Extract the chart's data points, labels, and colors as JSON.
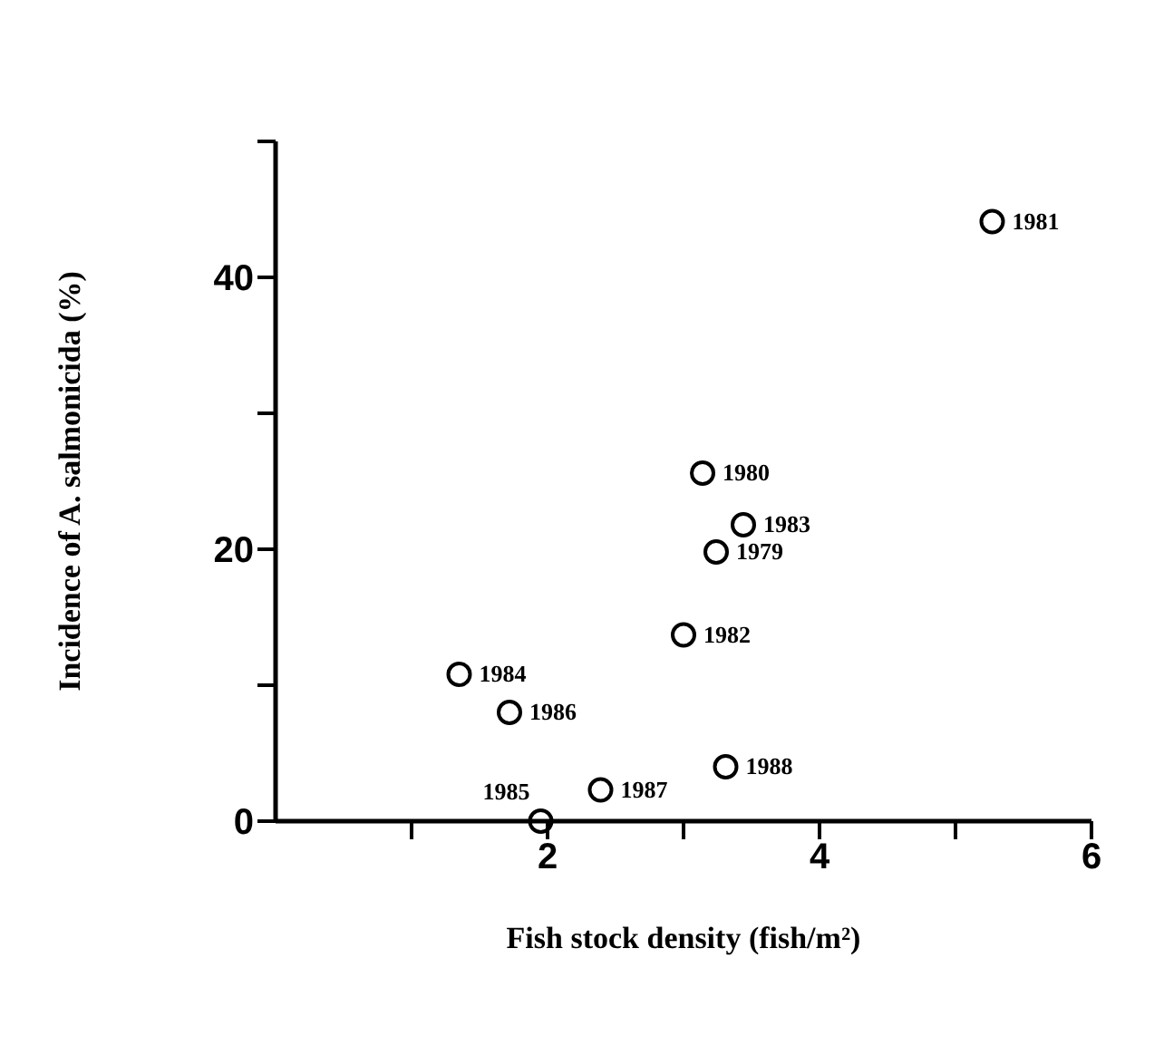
{
  "chart_data": {
    "type": "scatter",
    "xlabel": "Fish stock density (fish/m²)",
    "ylabel": "Incidence of A. salmonicida (%)",
    "x": [
      3.24,
      3.14,
      5.27,
      3.0,
      3.44,
      1.35,
      1.95,
      1.72,
      2.39,
      3.31
    ],
    "values": [
      19.8,
      25.6,
      44.1,
      13.7,
      21.8,
      10.8,
      0,
      8.0,
      2.3,
      4.0
    ],
    "color": "#000000",
    "marker": "circle",
    "grid": false,
    "xlim": [
      0,
      6
    ],
    "xticks": [
      {
        "value": 1,
        "label": null
      },
      2,
      {
        "value": 3,
        "label": null
      },
      4,
      {
        "value": 5,
        "label": null
      },
      6
    ],
    "ylim": [
      0,
      50
    ],
    "yticks": [
      0,
      {
        "value": 10,
        "label": null
      },
      20,
      {
        "value": 30,
        "label": null
      },
      40,
      {
        "value": 50,
        "label": null
      }
    ],
    "annotations": [
      {
        "text": "1979",
        "x": 3.24,
        "y": 19.8
      },
      {
        "text": "1980",
        "x": 3.14,
        "y": 25.6
      },
      {
        "text": "1981",
        "x": 5.27,
        "y": 44.1
      },
      {
        "text": "1982",
        "x": 3.0,
        "y": 13.7
      },
      {
        "text": "1983",
        "x": 3.44,
        "y": 21.8
      },
      {
        "text": "1984",
        "x": 1.35,
        "y": 10.8
      },
      {
        "text": "1985",
        "x": 1.95,
        "y": 0
      },
      {
        "text": "1986",
        "x": 1.72,
        "y": 8.0
      },
      {
        "text": "1987",
        "x": 2.39,
        "y": 2.3
      },
      {
        "text": "1988",
        "x": 3.31,
        "y": 4.0
      }
    ]
  }
}
